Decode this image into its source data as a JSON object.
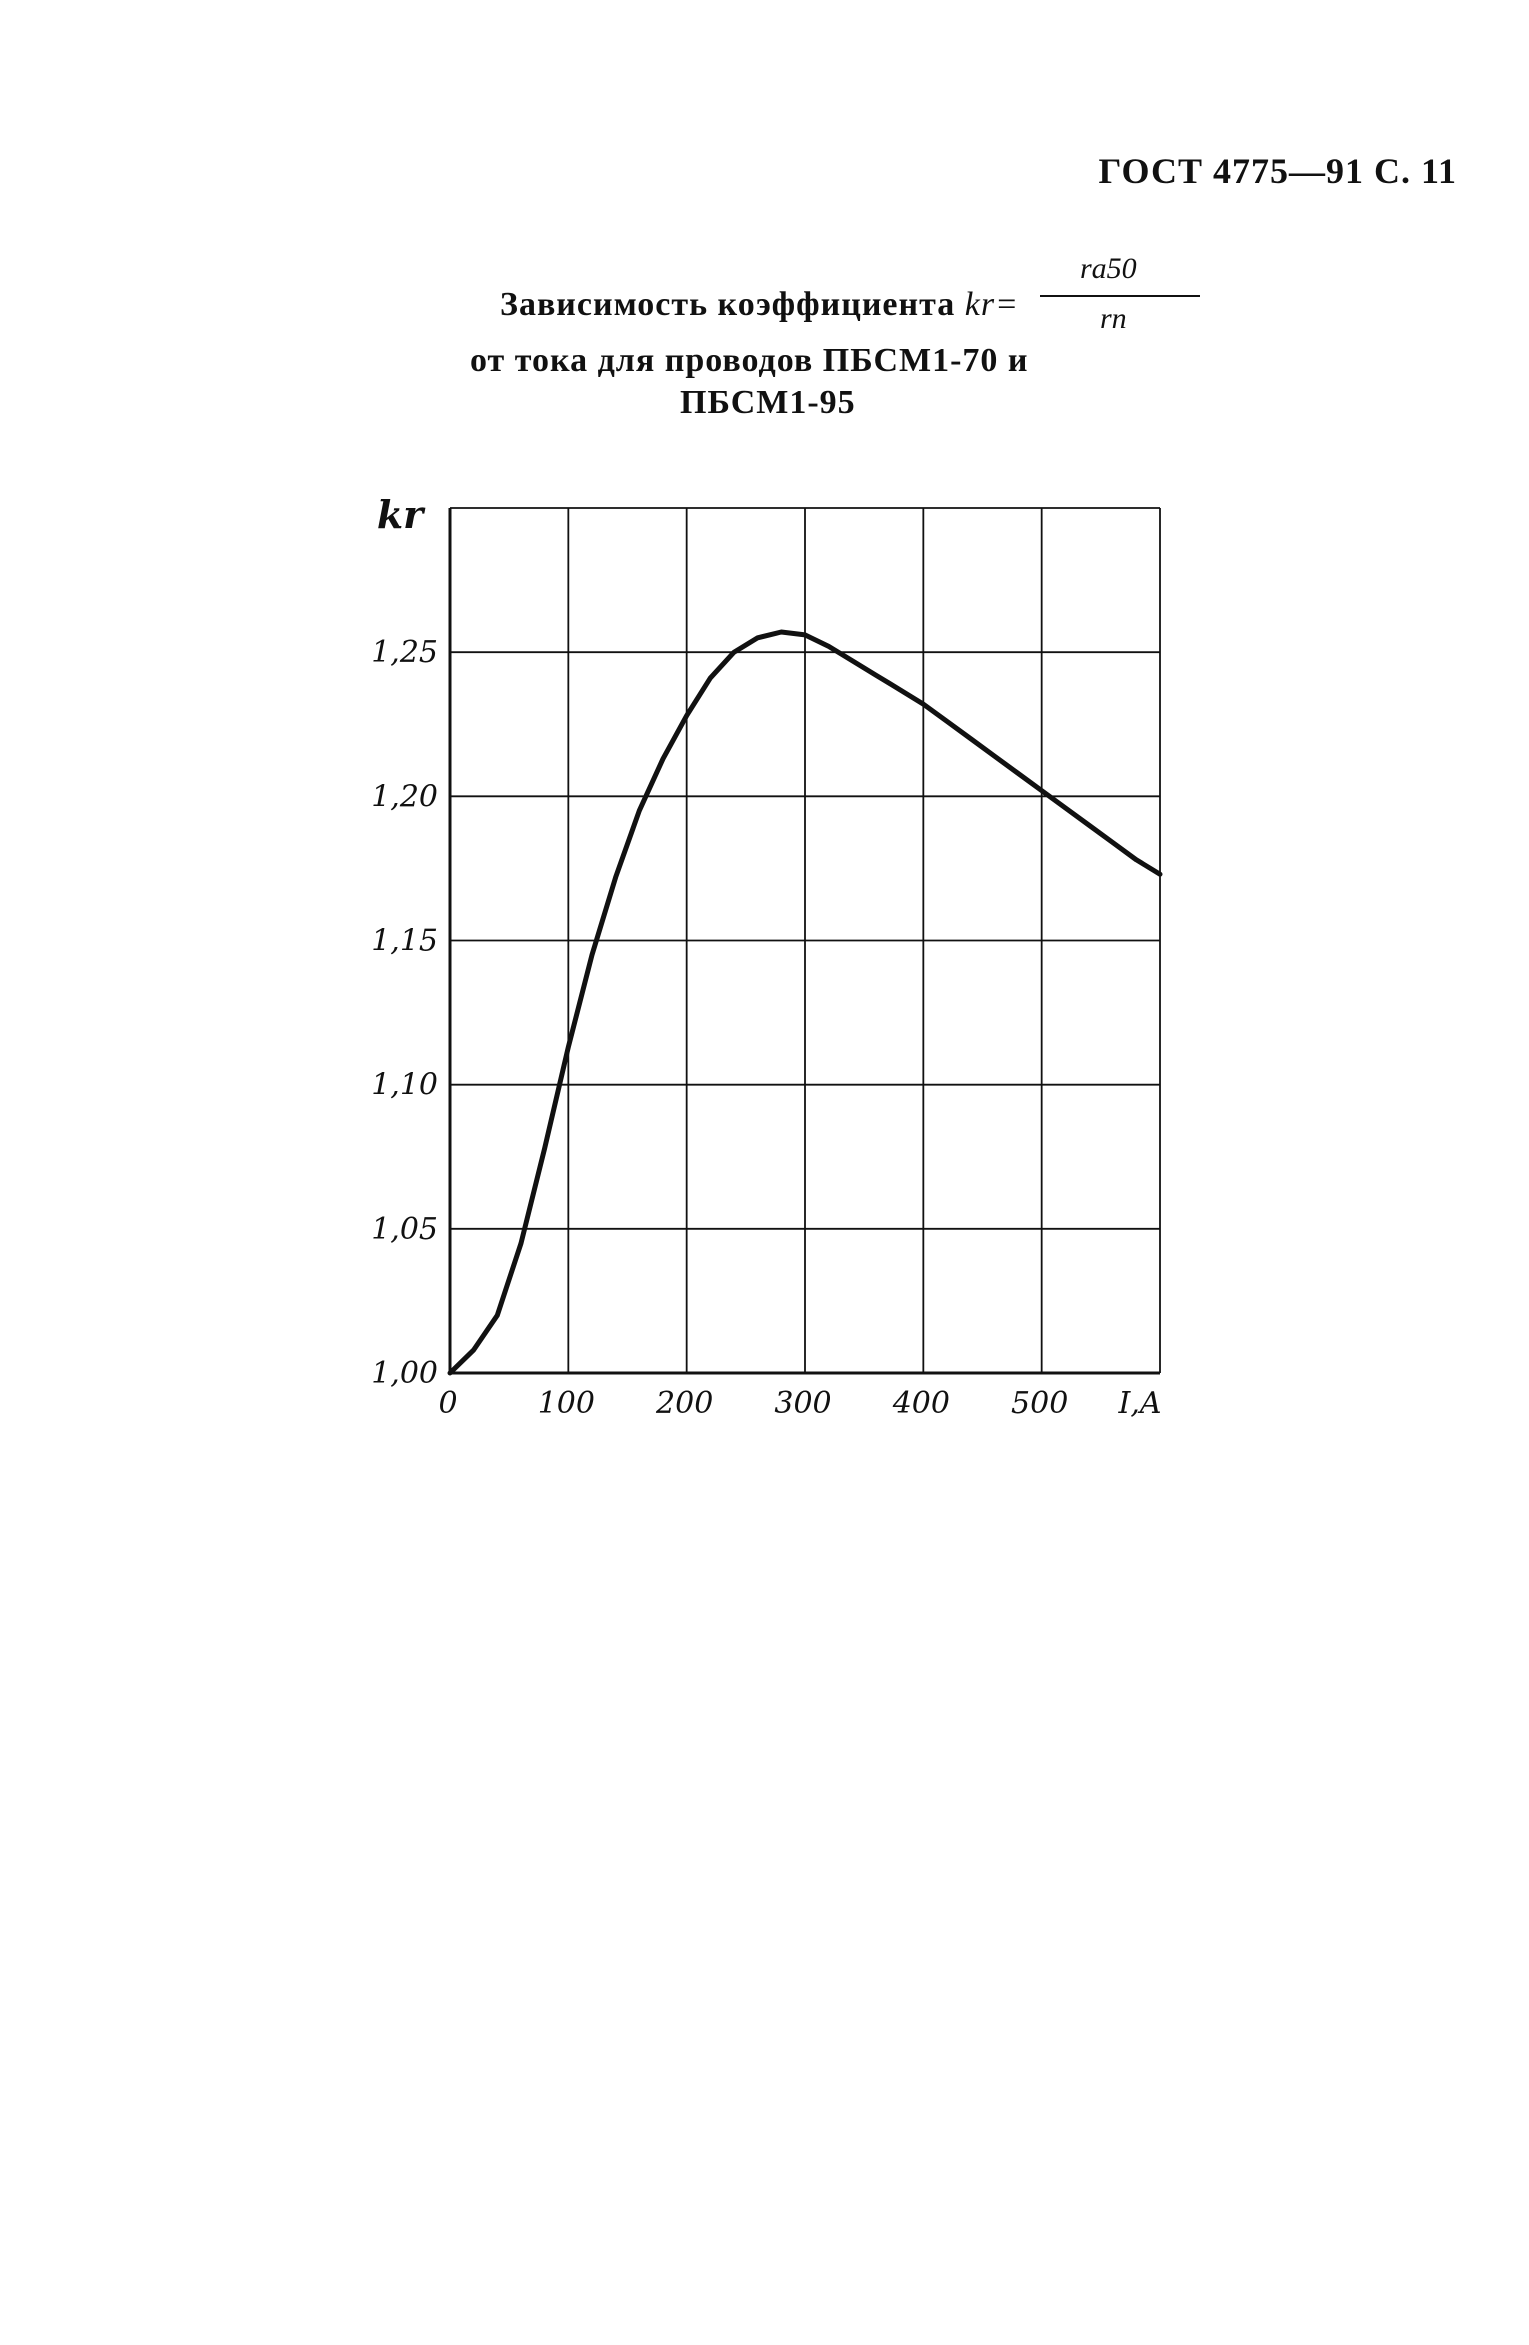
{
  "header": {
    "text": "ГОСТ 4775—91 С. 11"
  },
  "title": {
    "line1": "Зависимость коэффициента",
    "symbol": "kr=",
    "numerator": "ra50",
    "denominator": "rп",
    "line2": "от тока для проводов ПБСМ1-70 и",
    "line3": "ПБСМ1-95"
  },
  "chart_data": {
    "type": "line",
    "ylabel": "kr",
    "xlabel": "I,A",
    "xlim": [
      0,
      600
    ],
    "ylim": [
      1.0,
      1.3
    ],
    "x_ticks": [
      0,
      100,
      200,
      300,
      400,
      500
    ],
    "x_tick_labels": [
      "0",
      "100",
      "200",
      "300",
      "400",
      "500"
    ],
    "y_ticks": [
      1.0,
      1.05,
      1.1,
      1.15,
      1.2,
      1.25
    ],
    "y_tick_labels": [
      "1,00",
      "1,05",
      "1,10",
      "1,15",
      "1,20",
      "1,25"
    ],
    "grid": true,
    "series": [
      {
        "color": "#111111",
        "x": [
          0,
          20,
          40,
          60,
          80,
          100,
          120,
          140,
          160,
          180,
          200,
          220,
          240,
          260,
          280,
          300,
          320,
          340,
          360,
          380,
          400,
          420,
          440,
          460,
          480,
          500,
          520,
          540,
          560,
          580,
          600
        ],
        "y": [
          1.0,
          1.008,
          1.02,
          1.045,
          1.078,
          1.113,
          1.145,
          1.172,
          1.195,
          1.213,
          1.228,
          1.241,
          1.25,
          1.255,
          1.257,
          1.256,
          1.252,
          1.247,
          1.242,
          1.237,
          1.232,
          1.226,
          1.22,
          1.214,
          1.208,
          1.202,
          1.196,
          1.19,
          1.184,
          1.178,
          1.173
        ]
      }
    ]
  }
}
